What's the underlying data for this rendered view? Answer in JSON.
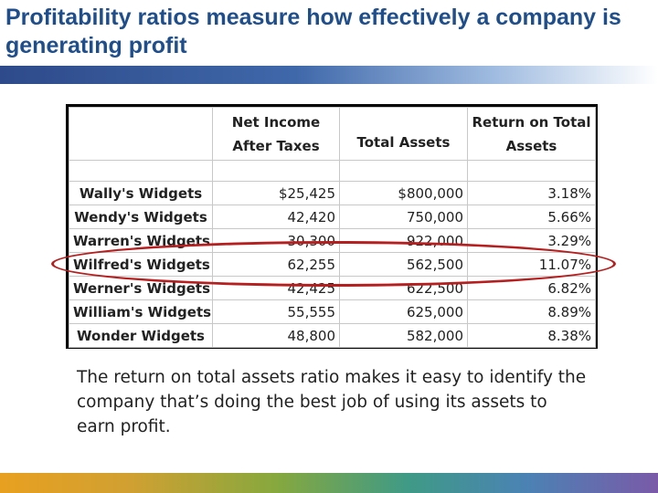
{
  "slide": {
    "title": "Profitability ratios measure how effectively a company is generating profit",
    "caption": "The return on total assets ratio makes it easy to identify the company that’s doing the best job of using its assets to earn profit.",
    "highlighted_company": "Wilfred's Widgets"
  },
  "table": {
    "columns": {
      "net_income": "Net Income After Taxes",
      "total_assets": "Total Assets",
      "roa": "Return on Total Assets"
    },
    "rows": [
      {
        "company": "Wally's Widgets",
        "net_income": "$25,425",
        "total_assets": "$800,000",
        "roa": "3.18%"
      },
      {
        "company": "Wendy's Widgets",
        "net_income": "42,420",
        "total_assets": "750,000",
        "roa": "5.66%"
      },
      {
        "company": "Warren's Widgets",
        "net_income": "30,300",
        "total_assets": "922,000",
        "roa": "3.29%"
      },
      {
        "company": "Wilfred's Widgets",
        "net_income": "62,255",
        "total_assets": "562,500",
        "roa": "11.07%"
      },
      {
        "company": "Werner's Widgets",
        "net_income": "42,425",
        "total_assets": "622,500",
        "roa": "6.82%"
      },
      {
        "company": "William's Widgets",
        "net_income": "55,555",
        "total_assets": "625,000",
        "roa": "8.89%"
      },
      {
        "company": "Wonder Widgets",
        "net_income": "48,800",
        "total_assets": "582,000",
        "roa": "8.38%"
      }
    ]
  },
  "colors": {
    "title": "#1f4e8c",
    "highlight_ellipse": "#b51f1f",
    "text": "#222222"
  }
}
